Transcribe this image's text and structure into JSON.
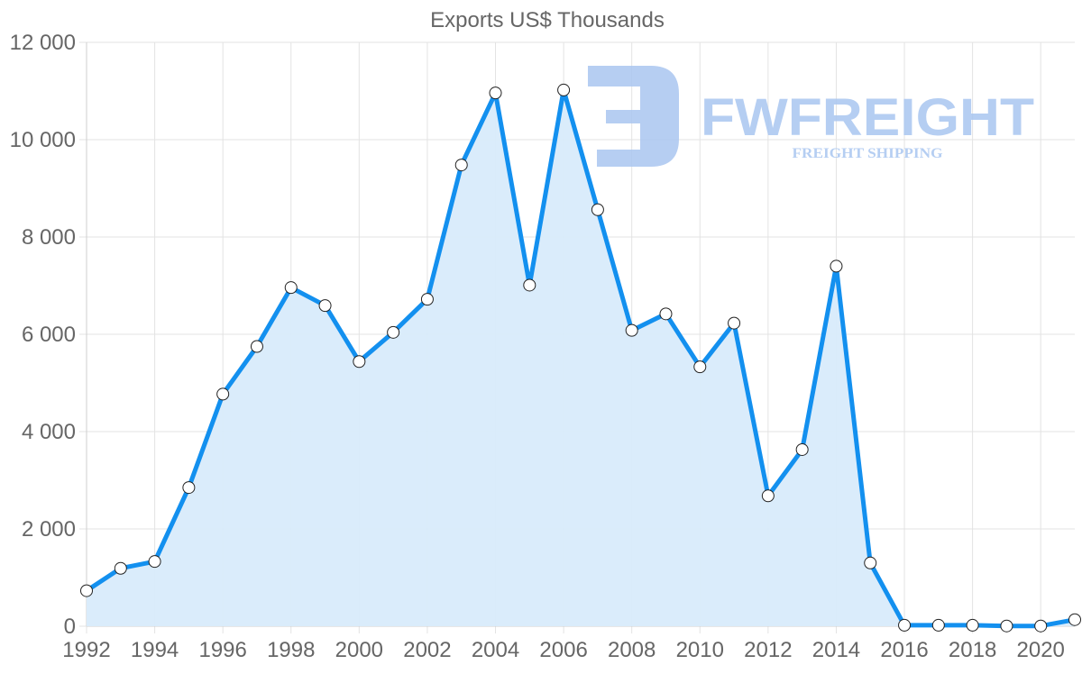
{
  "chart_data": {
    "type": "area",
    "title": "Exports US$ Thousands",
    "xlabel": "",
    "ylabel": "",
    "x": [
      1992,
      1993,
      1994,
      1995,
      1996,
      1997,
      1998,
      1999,
      2000,
      2001,
      2002,
      2003,
      2004,
      2005,
      2006,
      2007,
      2008,
      2009,
      2010,
      2011,
      2012,
      2013,
      2014,
      2015,
      2016,
      2017,
      2018,
      2019,
      2020,
      2021
    ],
    "series": [
      {
        "name": "Exports US$ Thousands",
        "values": [
          730,
          1190,
          1330,
          2850,
          4770,
          5750,
          6960,
          6590,
          5440,
          6040,
          6720,
          9480,
          10960,
          7010,
          11020,
          8560,
          6080,
          6420,
          5330,
          6230,
          2680,
          3630,
          7400,
          1300,
          20,
          20,
          20,
          5,
          5,
          135
        ]
      }
    ],
    "ylim": [
      0,
      12000
    ],
    "y_ticks": [
      0,
      2000,
      4000,
      6000,
      8000,
      10000,
      12000
    ],
    "y_tick_labels": [
      "0",
      "2 000",
      "4 000",
      "6 000",
      "8 000",
      "10 000",
      "12 000"
    ],
    "x_tick_labels": [
      "1992",
      "1994",
      "1996",
      "1998",
      "2000",
      "2002",
      "2004",
      "2006",
      "2008",
      "2010",
      "2012",
      "2014",
      "2016",
      "2018",
      "2020"
    ],
    "grid": true,
    "legend": "none",
    "colors": {
      "line": "#1390ef",
      "fill": "#d8ebfb",
      "grid": "#e3e3e3",
      "axis_text": "#666666",
      "marker_fill": "#ffffff",
      "marker_stroke": "#222222"
    }
  },
  "watermark": {
    "brand": "FWFREIGHT",
    "tagline": "FREIGHT SHIPPING",
    "color": "#a9c6f0"
  }
}
